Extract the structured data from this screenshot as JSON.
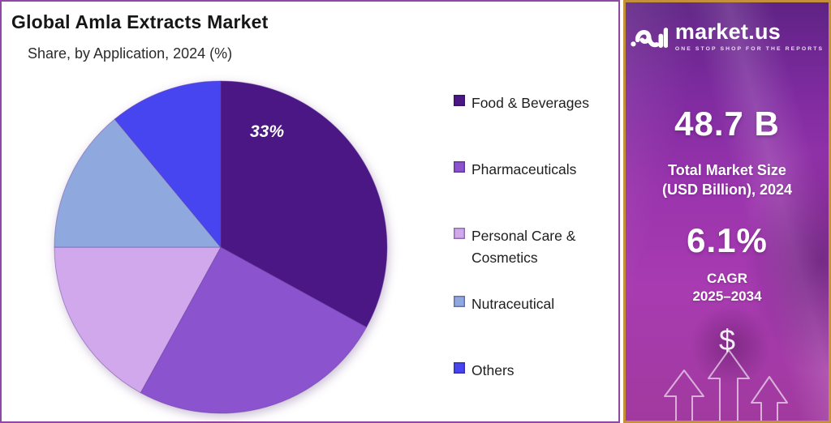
{
  "header": {
    "title": "Global Amla Extracts Market",
    "subtitle": "Share, by Application, 2024 (%)"
  },
  "chart_data": {
    "type": "pie",
    "title": "Global Amla Extracts Market — Share, by Application, 2024 (%)",
    "categories": [
      "Food & Beverages",
      "Pharmaceuticals",
      "Personal Care & Cosmetics",
      "Nutraceutical",
      "Others"
    ],
    "values": [
      33,
      25,
      17,
      14,
      11
    ],
    "unit": "%",
    "colors": [
      "#4A1784",
      "#8B53CE",
      "#D0A8EB",
      "#8FA9DF",
      "#4645F0"
    ],
    "slice_labels": [
      "33%",
      "",
      "",
      "",
      ""
    ],
    "legend_position": "right",
    "start_angle": "top, clockwise"
  },
  "sidebar": {
    "brand": {
      "name": "market.us",
      "tagline": "ONE STOP SHOP FOR THE REPORTS"
    },
    "market_size": {
      "value": "48.7 B",
      "label_line1": "Total Market Size",
      "label_line2": "(USD Billion), 2024"
    },
    "cagr": {
      "value": "6.1%",
      "label_line1": "CAGR",
      "label_line2": "2025–2034"
    },
    "dollar_symbol": "$",
    "colors": {
      "border_gold": "#C4913A",
      "background_purple": "#9A34AD",
      "text": "#FFFFFF"
    }
  },
  "panel_colors": {
    "chart_border": "#8F48A3",
    "chart_background": "#FFFFFF"
  }
}
